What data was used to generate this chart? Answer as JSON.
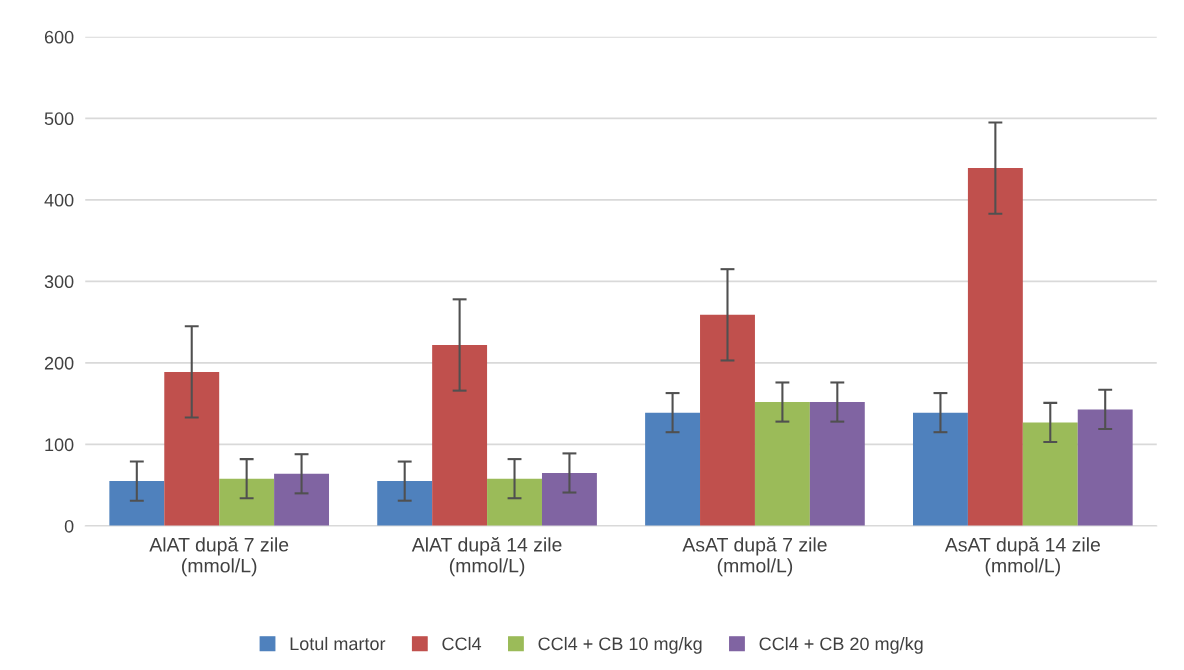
{
  "chart_data": {
    "type": "bar",
    "categories": [
      "AlAT după 7 zile\n(mmol/L)",
      "AlAT după 14 zile\n(mmol/L)",
      "AsAT după 7 zile\n(mmol/L)",
      "AsAT după 14 zile\n(mmol/L)"
    ],
    "series": [
      {
        "name": "Lotul martor",
        "color": "#4f81bd",
        "values": [
          55,
          55,
          139,
          139
        ],
        "errors": [
          24,
          24,
          24,
          24
        ]
      },
      {
        "name": "CCl4",
        "color": "#c0504d",
        "values": [
          189,
          222,
          259,
          439
        ],
        "errors": [
          56,
          56,
          56,
          56
        ]
      },
      {
        "name": "CCl4 + CB 10 mg/kg",
        "color": "#9bbb59",
        "values": [
          58,
          58,
          152,
          127
        ],
        "errors": [
          24,
          24,
          24,
          24
        ]
      },
      {
        "name": "CCl4 + CB 20 mg/kg",
        "color": "#8064a2",
        "values": [
          64,
          65,
          152,
          143
        ],
        "errors": [
          24,
          24,
          24,
          24
        ]
      }
    ],
    "ylim": [
      0,
      600
    ],
    "yticks": [
      0,
      100,
      200,
      300,
      400,
      500,
      600
    ],
    "grid": "y",
    "legend": "bottom"
  }
}
